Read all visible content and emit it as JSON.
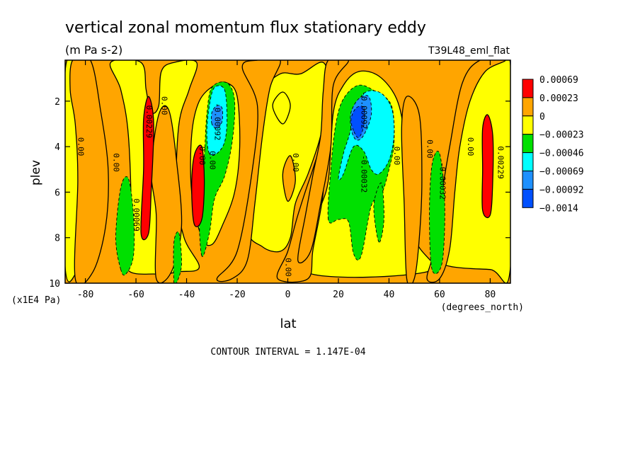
{
  "chart_data": {
    "type": "heatmap",
    "title": "vertical zonal momentum flux stationary eddy",
    "units": "(m Pa s-2)",
    "run_label": "T39L48_eml_flat",
    "xlabel": "lat",
    "xunits": "(degrees_north)",
    "ylabel": "plev",
    "yunits": "(x1E4 Pa)",
    "xlim": [
      -88,
      88
    ],
    "ylim": [
      10,
      0.2
    ],
    "x_ticks": [
      -80,
      -60,
      -40,
      -20,
      0,
      20,
      40,
      60,
      80
    ],
    "y_ticks": [
      2,
      4,
      6,
      8,
      10
    ],
    "contour_interval_text": "CONTOUR INTERVAL = 1.147E-04",
    "colorbar": {
      "labels": [
        "0.00069",
        "0.00023",
        "0",
        "−0.00023",
        "−0.00046",
        "−0.00069",
        "−0.00092",
        "−0.0014"
      ],
      "colors": [
        "#ff0000",
        "#ffa500",
        "#ffff00",
        "#00e000",
        "#00ffff",
        "#1e90ff",
        "#0050ff"
      ]
    },
    "contour_labels": [
      {
        "text": "0.00",
        "lat": -82,
        "plev": 4
      },
      {
        "text": "0.00",
        "lat": -68,
        "plev": 4.7
      },
      {
        "text": "0.00069",
        "lat": -60,
        "plev": 7
      },
      {
        "text": "0.00229",
        "lat": -55,
        "plev": 2.9
      },
      {
        "text": "0.00",
        "lat": -49,
        "plev": 2.2
      },
      {
        "text": "0.00",
        "lat": -34,
        "plev": 4.4
      },
      {
        "text": "0.00",
        "lat": -30,
        "plev": 4.6
      },
      {
        "text": "-0.00092",
        "lat": -28,
        "plev": 2.9
      },
      {
        "text": "0.00",
        "lat": 3,
        "plev": 4.7
      },
      {
        "text": "0.00",
        "lat": 0,
        "plev": 9.3
      },
      {
        "text": "-0.00092",
        "lat": 30,
        "plev": 2.4
      },
      {
        "text": "-0.00032",
        "lat": 30,
        "plev": 5.2
      },
      {
        "text": "0.00",
        "lat": 43,
        "plev": 4.4
      },
      {
        "text": "0.00",
        "lat": 56,
        "plev": 4.1
      },
      {
        "text": "-0.00032",
        "lat": 61,
        "plev": 5.5
      },
      {
        "text": "0.00",
        "lat": 72,
        "plev": 4
      },
      {
        "text": "0.00229",
        "lat": 84,
        "plev": 4.7
      }
    ],
    "regions": [
      {
        "level": 1,
        "path": [
          [
            -88,
            9.3
          ],
          [
            -82,
            9.3
          ],
          [
            -77,
            9.2
          ],
          [
            -73,
            8
          ],
          [
            -71,
            5.5
          ],
          [
            -74,
            3.5
          ],
          [
            -79,
            1.8
          ],
          [
            -82,
            0.9
          ],
          [
            -88,
            0.7
          ]
        ]
      },
      {
        "level": 1,
        "path": [
          [
            -64,
            9.3
          ],
          [
            -62,
            7
          ],
          [
            -63,
            3.5
          ],
          [
            -66,
            1.5
          ],
          [
            -70,
            0.3
          ],
          [
            -58,
            0.3
          ],
          [
            -56,
            1.5
          ],
          [
            -54,
            2.5
          ],
          [
            -51,
            2.2
          ],
          [
            -50,
            0.7
          ],
          [
            -45,
            0.3
          ],
          [
            -36,
            0.3
          ],
          [
            -39,
            1.5
          ],
          [
            -43,
            3
          ],
          [
            -44,
            6
          ],
          [
            -41,
            8
          ],
          [
            -35,
            9.3
          ],
          [
            -43,
            9.5
          ],
          [
            -52,
            9.6
          ]
        ]
      },
      {
        "level": 1,
        "path": [
          [
            -34,
            8
          ],
          [
            -38,
            6
          ],
          [
            -38,
            3.5
          ],
          [
            -35,
            2
          ],
          [
            -29,
            1.3
          ],
          [
            -24,
            1.2
          ],
          [
            -20,
            1.8
          ],
          [
            -19,
            4
          ],
          [
            -21,
            6
          ],
          [
            -26,
            7.5
          ],
          [
            -30,
            8.3
          ]
        ]
      },
      {
        "level": 1,
        "path": [
          [
            -16,
            7.5
          ],
          [
            -12,
            4
          ],
          [
            -9,
            1.6
          ],
          [
            -3,
            0.8
          ],
          [
            5,
            0.8
          ],
          [
            14,
            0.3
          ],
          [
            16,
            1.5
          ],
          [
            13,
            3.5
          ],
          [
            8,
            5.2
          ],
          [
            3,
            6.5
          ],
          [
            1,
            8
          ],
          [
            -3,
            8.6
          ],
          [
            -10,
            8.4
          ]
        ]
      },
      {
        "level": 1,
        "path": [
          [
            7,
            9.5
          ],
          [
            12,
            7
          ],
          [
            16,
            5.5
          ],
          [
            18,
            2.5
          ],
          [
            22,
            1.3
          ],
          [
            28,
            0.7
          ],
          [
            36,
            0.9
          ],
          [
            43,
            1.9
          ],
          [
            46,
            3.5
          ],
          [
            47,
            6
          ],
          [
            51,
            8.2
          ],
          [
            55,
            9.5
          ]
        ]
      },
      {
        "level": 1,
        "path": [
          [
            59,
            9
          ],
          [
            63,
            7
          ],
          [
            65,
            5
          ],
          [
            67,
            3.5
          ],
          [
            72,
            1.4
          ],
          [
            80,
            0.5
          ],
          [
            88,
            0.4
          ],
          [
            88,
            9.3
          ],
          [
            80,
            9.4
          ]
        ]
      },
      {
        "level": 1,
        "path": [
          [
            -6,
            2.2
          ],
          [
            -2,
            1.6
          ],
          [
            1,
            2.2
          ],
          [
            -2,
            3
          ]
        ]
      },
      {
        "level": 0,
        "path": [
          [
            -84,
            9.8
          ],
          [
            -83,
            5.5
          ],
          [
            -84,
            3
          ],
          [
            -86,
            1.5
          ],
          [
            -85,
            0.2
          ],
          [
            -78,
            0.2
          ],
          [
            -74,
            2.4
          ],
          [
            -71,
            5
          ],
          [
            -72,
            7.5
          ],
          [
            -77,
            9.5
          ]
        ]
      },
      {
        "level": 0,
        "path": [
          [
            -52,
            9.8
          ],
          [
            -52,
            7
          ],
          [
            -54,
            5
          ],
          [
            -51,
            2.6
          ],
          [
            -47,
            2.4
          ],
          [
            -44,
            4.6
          ],
          [
            -42,
            7.5
          ],
          [
            -46,
            9.5
          ]
        ]
      },
      {
        "level": 0,
        "path": [
          [
            -28,
            9.8
          ],
          [
            -20,
            8.6
          ],
          [
            -14,
            5
          ],
          [
            -12,
            2.2
          ],
          [
            -18,
            0.5
          ],
          [
            -12,
            0.2
          ],
          [
            -3,
            0.2
          ],
          [
            -7,
            1.4
          ],
          [
            -10,
            3.5
          ],
          [
            -13,
            6.5
          ],
          [
            -16,
            9
          ],
          [
            -22,
            9.8
          ]
        ]
      },
      {
        "level": 0,
        "path": [
          [
            -4,
            9.8
          ],
          [
            0,
            8.6
          ],
          [
            4,
            7
          ],
          [
            9,
            5.3
          ],
          [
            13,
            4.2
          ],
          [
            14,
            6
          ],
          [
            10,
            8.5
          ],
          [
            8,
            9.8
          ]
        ]
      },
      {
        "level": 0,
        "path": [
          [
            4,
            9
          ],
          [
            7,
            7
          ],
          [
            10,
            5.2
          ],
          [
            13,
            3.5
          ],
          [
            14,
            1.6
          ],
          [
            16,
            0.2
          ],
          [
            24,
            0.2
          ],
          [
            18,
            1.3
          ],
          [
            17,
            4
          ],
          [
            13,
            6.5
          ],
          [
            9,
            8.6
          ]
        ]
      },
      {
        "level": 0,
        "path": [
          [
            47,
            9.8
          ],
          [
            46,
            6.5
          ],
          [
            45,
            3.2
          ],
          [
            47,
            1.8
          ],
          [
            52,
            2.6
          ],
          [
            53,
            5.5
          ],
          [
            52,
            8
          ],
          [
            50,
            9.8
          ]
        ]
      },
      {
        "level": 0,
        "path": [
          [
            55,
            9.8
          ],
          [
            58,
            8.5
          ],
          [
            61,
            6
          ],
          [
            64,
            4
          ],
          [
            69,
            1.2
          ],
          [
            76,
            0.2
          ],
          [
            86,
            0.2
          ],
          [
            78,
            0.7
          ],
          [
            72,
            2
          ],
          [
            68,
            4
          ],
          [
            66,
            6
          ],
          [
            64,
            8.5
          ],
          [
            60,
            9.8
          ]
        ]
      },
      {
        "level": 0,
        "path": [
          [
            -2,
            5.2
          ],
          [
            1,
            4.4
          ],
          [
            3,
            5.5
          ],
          [
            0,
            6.4
          ]
        ]
      },
      {
        "level": -1,
        "path": [
          [
            -66,
            9.4
          ],
          [
            -68,
            8
          ],
          [
            -66,
            5.8
          ],
          [
            -63,
            5.4
          ],
          [
            -61,
            7
          ],
          [
            -61,
            8.8
          ],
          [
            -64,
            9.6
          ]
        ]
      },
      {
        "level": -1,
        "path": [
          [
            -34,
            8.8
          ],
          [
            -35,
            6.6
          ],
          [
            -33,
            4.4
          ],
          [
            -32,
            2.6
          ],
          [
            -30,
            1.4
          ],
          [
            -24,
            1.2
          ],
          [
            -21,
            2
          ],
          [
            -22,
            3.8
          ],
          [
            -25,
            5.3
          ],
          [
            -29,
            6.3
          ],
          [
            -31,
            7.8
          ]
        ]
      },
      {
        "level": -1,
        "path": [
          [
            -45,
            10
          ],
          [
            -45,
            8.2
          ],
          [
            -43,
            7.8
          ],
          [
            -42,
            9.2
          ],
          [
            -44,
            10
          ]
        ]
      },
      {
        "level": -1,
        "path": [
          [
            16,
            7.2
          ],
          [
            17,
            5
          ],
          [
            19,
            3
          ],
          [
            22,
            1.9
          ],
          [
            28,
            1.3
          ],
          [
            35,
            1.6
          ],
          [
            41,
            2.2
          ],
          [
            42,
            3.8
          ],
          [
            40,
            5
          ],
          [
            37,
            6.1
          ],
          [
            33,
            6.6
          ],
          [
            29,
            8.8
          ],
          [
            26,
            8.7
          ],
          [
            24,
            7.3
          ],
          [
            20,
            7.2
          ]
        ]
      },
      {
        "level": -1,
        "path": [
          [
            36,
            8.2
          ],
          [
            34,
            6.6
          ],
          [
            37,
            5.6
          ],
          [
            38,
            7.2
          ]
        ]
      },
      {
        "level": -1,
        "path": [
          [
            57,
            9.4
          ],
          [
            56,
            7
          ],
          [
            57,
            4.8
          ],
          [
            60,
            4.3
          ],
          [
            62,
            6.5
          ],
          [
            61,
            9.1
          ]
        ]
      },
      {
        "level": -2,
        "path": [
          [
            -31,
            4.3
          ],
          [
            -32,
            3.4
          ],
          [
            -31,
            2.2
          ],
          [
            -29,
            1.4
          ],
          [
            -25,
            1.5
          ],
          [
            -24,
            2.8
          ],
          [
            -25,
            3.8
          ],
          [
            -28,
            4.3
          ]
        ]
      },
      {
        "level": -2,
        "path": [
          [
            20,
            5.4
          ],
          [
            22,
            4.3
          ],
          [
            24,
            3.6
          ],
          [
            29,
            1.8
          ],
          [
            36,
            1.6
          ],
          [
            41,
            2.3
          ],
          [
            42,
            3.5
          ],
          [
            40,
            4.6
          ],
          [
            36,
            5.2
          ],
          [
            33,
            5
          ],
          [
            30,
            4.2
          ],
          [
            26,
            4
          ],
          [
            22,
            5.2
          ]
        ]
      },
      {
        "level": -3,
        "path": [
          [
            -30,
            3
          ],
          [
            -30,
            2.5
          ],
          [
            -28,
            2.2
          ],
          [
            -26,
            2.3
          ],
          [
            -26,
            2.9
          ],
          [
            -28,
            3.2
          ]
        ]
      },
      {
        "level": -3,
        "path": [
          [
            25,
            3.2
          ],
          [
            25,
            2.5
          ],
          [
            28,
            1.9
          ],
          [
            32,
            1.8
          ],
          [
            33,
            2.6
          ],
          [
            30,
            3.5
          ],
          [
            27,
            3.7
          ]
        ]
      },
      {
        "level": -4,
        "path": [
          [
            26,
            3.3
          ],
          [
            25,
            2.8
          ],
          [
            27,
            2.3
          ],
          [
            30,
            2.3
          ],
          [
            30,
            3.1
          ],
          [
            28,
            3.6
          ]
        ]
      },
      {
        "level": 2,
        "path": [
          [
            -58,
            7.8
          ],
          [
            -57,
            5
          ],
          [
            -57,
            2.8
          ],
          [
            -55,
            1.8
          ],
          [
            -53,
            3
          ],
          [
            -54,
            6
          ],
          [
            -55,
            7.8
          ]
        ]
      },
      {
        "level": 2,
        "path": [
          [
            -37,
            7.4
          ],
          [
            -38,
            5.8
          ],
          [
            -37,
            4.4
          ],
          [
            -34,
            4
          ],
          [
            -33,
            5.6
          ],
          [
            -34,
            7.2
          ]
        ]
      },
      {
        "level": 2,
        "path": [
          [
            77,
            6.8
          ],
          [
            77,
            5
          ],
          [
            77,
            3.2
          ],
          [
            79,
            2.6
          ],
          [
            81,
            3.5
          ],
          [
            81,
            5.5
          ],
          [
            80,
            7
          ]
        ]
      }
    ]
  }
}
